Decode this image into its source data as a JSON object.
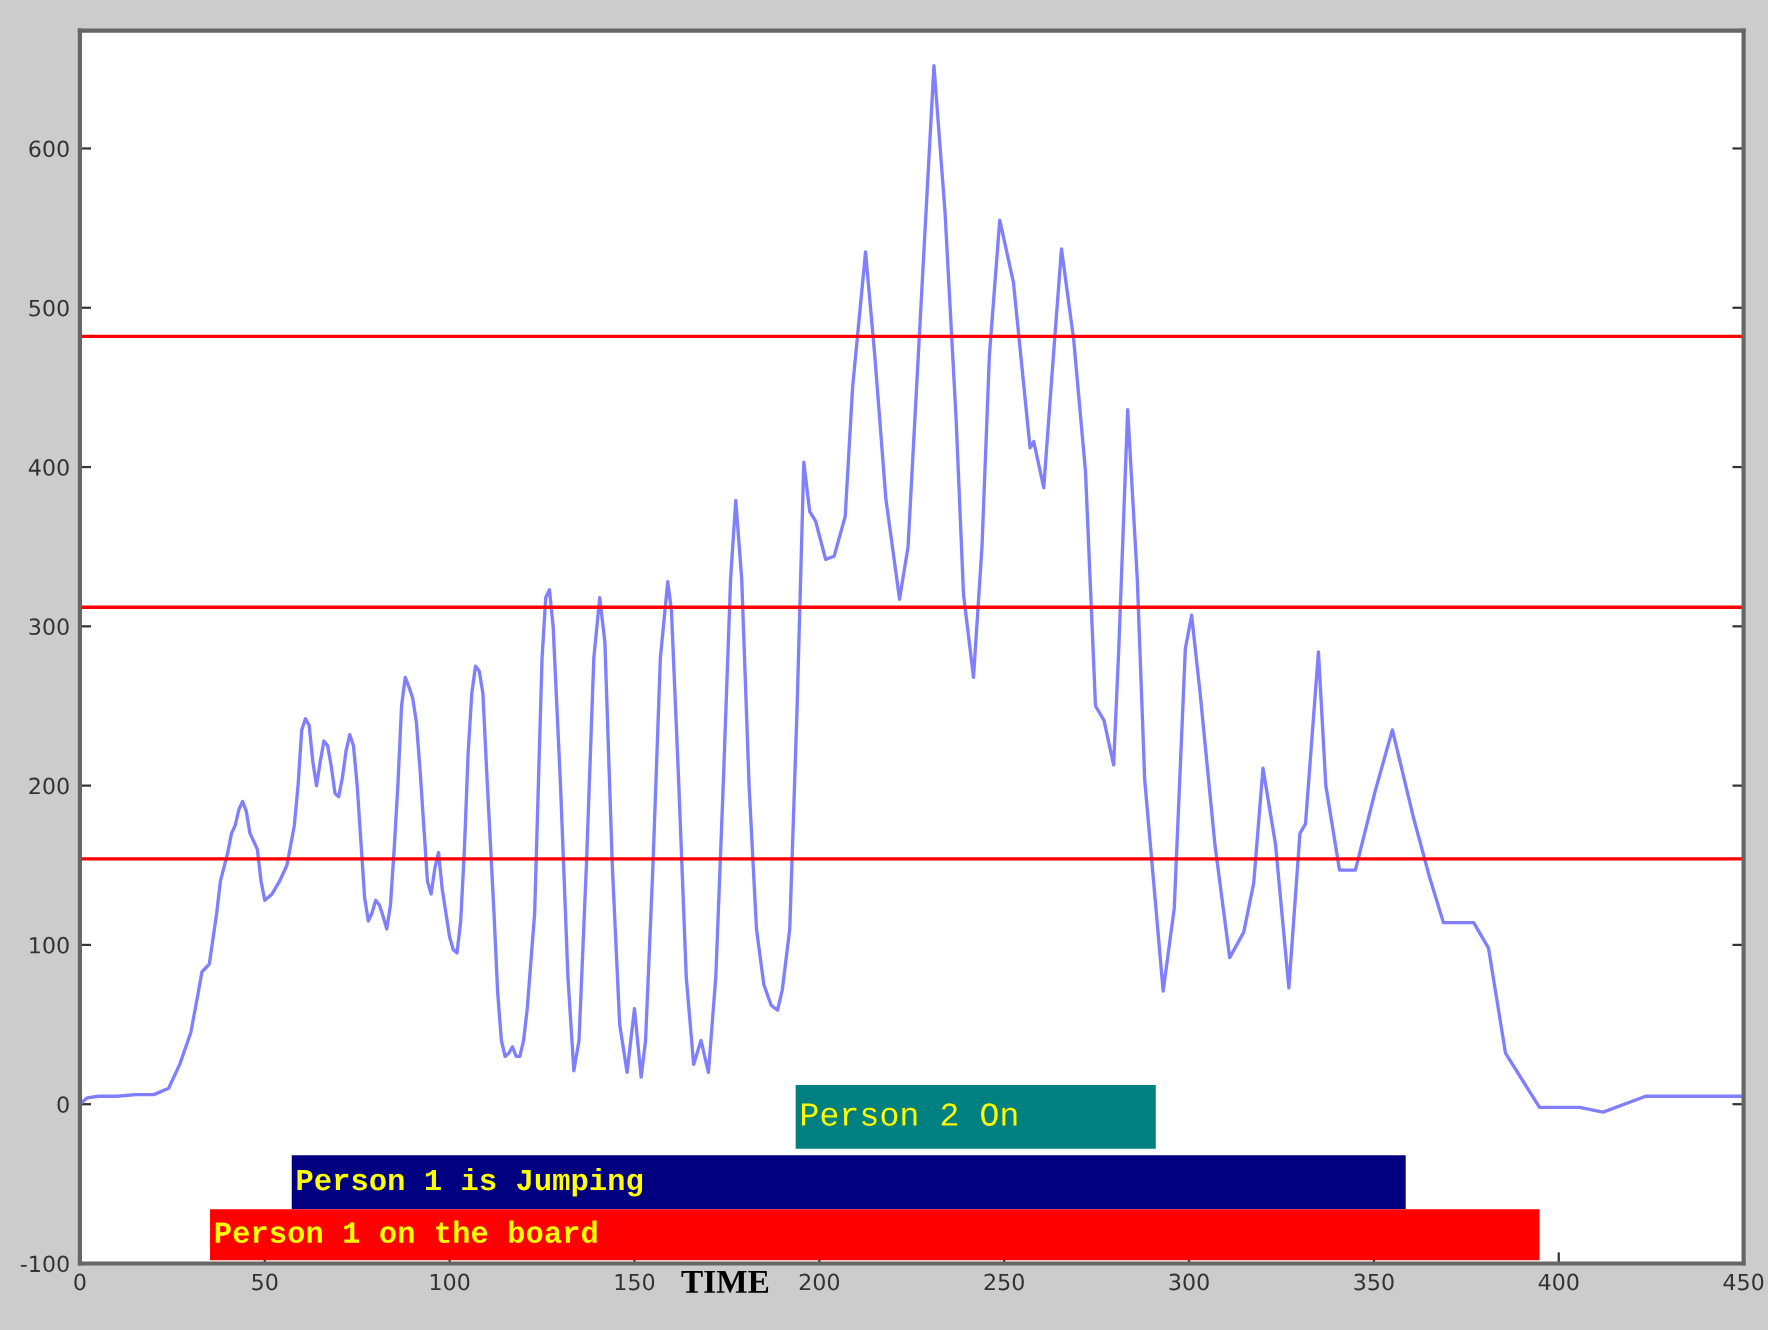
{
  "chart_data": {
    "type": "line",
    "xlabel": "TIME",
    "series": [
      {
        "color": "#7f7fff",
        "x": [
          0,
          2,
          5,
          10,
          15,
          20,
          24,
          27,
          30,
          32,
          33,
          35,
          37,
          38,
          40,
          41,
          42,
          43,
          44,
          45,
          46,
          48,
          49,
          50,
          52,
          54,
          56,
          58,
          59,
          60,
          61,
          62,
          63,
          64,
          65,
          66,
          67,
          68,
          69,
          70,
          71,
          72,
          73,
          74,
          75,
          76,
          77,
          78,
          79,
          80,
          81,
          82,
          83,
          84,
          85,
          86,
          87,
          88,
          89,
          90,
          91,
          92,
          93,
          94,
          95,
          96,
          97,
          98,
          100,
          101,
          102,
          103,
          104,
          105,
          106,
          107,
          108,
          109,
          110,
          112,
          113,
          114,
          115,
          116,
          117,
          118,
          119,
          120,
          121,
          123,
          124,
          125,
          126,
          127,
          128,
          130,
          132,
          133.6,
          135,
          137,
          139,
          140.6,
          142,
          144,
          146,
          148,
          150,
          151.8,
          153,
          155,
          157,
          159,
          160,
          162,
          164,
          166,
          168,
          170,
          172,
          174,
          176,
          177.4,
          179,
          181,
          183,
          185,
          187,
          188.7,
          190,
          192,
          194,
          195.8,
          197.4,
          199,
          201.7,
          204,
          207,
          209,
          212.5,
          215,
          218,
          221.7,
          224,
          227,
          231,
          234,
          237,
          239,
          241.7,
          244,
          246,
          248.8,
          252.5,
          257,
          258,
          260.7,
          263,
          265.5,
          268.8,
          272,
          274.7,
          277,
          279.6,
          281,
          283.4,
          286,
          288,
          293,
          296,
          299,
          300.7,
          303,
          307,
          311,
          314.8,
          317.5,
          320,
          323.4,
          327,
          330,
          331.5,
          335,
          337,
          340.7,
          345,
          350.4,
          355,
          360.7,
          365,
          368.8,
          377,
          381,
          385.6,
          391,
          394.8,
          405.6,
          412,
          423.5,
          450
        ],
        "values": [
          0,
          4,
          5,
          5,
          6,
          6,
          10,
          25,
          45,
          70,
          83,
          88,
          120,
          140,
          158,
          170,
          175,
          185,
          190,
          184,
          170,
          160,
          140,
          128,
          132,
          140,
          150,
          175,
          200,
          235,
          242,
          238,
          215,
          200,
          215,
          228,
          225,
          212,
          195,
          193,
          205,
          222,
          232,
          225,
          200,
          165,
          130,
          115,
          120,
          128,
          125,
          118,
          110,
          125,
          160,
          200,
          250,
          268,
          262,
          255,
          240,
          210,
          175,
          140,
          132,
          148,
          158,
          135,
          105,
          97,
          95,
          115,
          160,
          220,
          258,
          275,
          272,
          258,
          210,
          120,
          70,
          40,
          30,
          32,
          36,
          30,
          30,
          40,
          60,
          120,
          200,
          280,
          318,
          323,
          300,
          200,
          80,
          21,
          40,
          150,
          280,
          318,
          290,
          150,
          50,
          20,
          60,
          17,
          40,
          150,
          280,
          328,
          310,
          200,
          80,
          25,
          40,
          20,
          80,
          200,
          330,
          379,
          330,
          200,
          110,
          75,
          62,
          59,
          72,
          110,
          250,
          403,
          372,
          366,
          342,
          344,
          369,
          450,
          535,
          470,
          380,
          317,
          350,
          480,
          652,
          560,
          430,
          320,
          268,
          350,
          470,
          555,
          516,
          412,
          416,
          387,
          460,
          537,
          480,
          397,
          250,
          241,
          213,
          286,
          436,
          330,
          204,
          71,
          123,
          286,
          307,
          258,
          163,
          92,
          108,
          139,
          211,
          163,
          73,
          170,
          176,
          284,
          200,
          147,
          147,
          197,
          235,
          180,
          143,
          114,
          114,
          98,
          32,
          12,
          -2,
          -2,
          -5,
          5,
          5
        ]
      }
    ],
    "xlim": [
      0,
      450
    ],
    "ylim": [
      -100,
      674
    ],
    "xticks": [
      0,
      50,
      100,
      150,
      200,
      250,
      300,
      350,
      400,
      450
    ],
    "yticks": [
      -100,
      0,
      100,
      200,
      300,
      400,
      500,
      600
    ],
    "ref_lines": [
      {
        "axis": "y",
        "value": 482,
        "color": "#ff0000"
      },
      {
        "axis": "y",
        "value": 312,
        "color": "#ff0000"
      },
      {
        "axis": "y",
        "value": 154,
        "color": "#ff0000"
      }
    ],
    "bands": [
      {
        "axis": "x",
        "from": 193.6,
        "to": 291,
        "label": "Person 2 On",
        "color": "#008080"
      },
      {
        "axis": "x",
        "from": 57.3,
        "to": 358.6,
        "label": "Person 1 is Jumping",
        "color": "#000080"
      },
      {
        "axis": "x",
        "from": 35.2,
        "to": 394.8,
        "label": "Person 1 on the board",
        "color": "#ff0000"
      }
    ],
    "grid": false
  }
}
